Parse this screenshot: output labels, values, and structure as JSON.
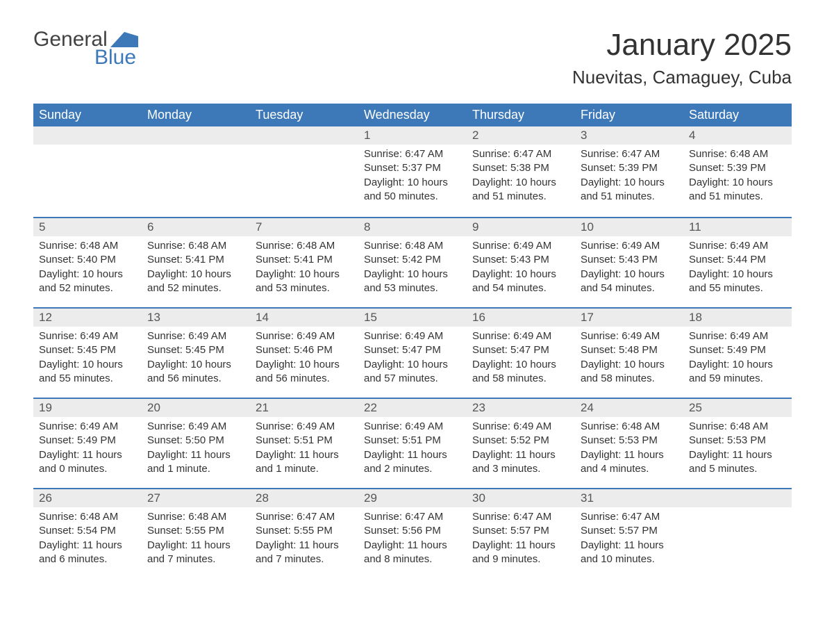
{
  "logo": {
    "text_general": "General",
    "text_blue": "Blue",
    "flag_color": "#3d79b8",
    "general_color": "#424242"
  },
  "header": {
    "month_title": "January 2025",
    "location": "Nuevitas, Camaguey, Cuba"
  },
  "styling": {
    "header_bg": "#3d79b8",
    "header_fg": "#ffffff",
    "daynum_bg": "#ececec",
    "row_divider": "#3d79b8",
    "body_text": "#333333",
    "title_fontsize": 44,
    "location_fontsize": 26,
    "th_fontsize": 18,
    "daynum_fontsize": 17,
    "cell_fontsize": 15,
    "columns": 7,
    "page_bg": "#ffffff"
  },
  "weekdays": [
    "Sunday",
    "Monday",
    "Tuesday",
    "Wednesday",
    "Thursday",
    "Friday",
    "Saturday"
  ],
  "weeks": [
    [
      {
        "day": "",
        "sunrise": "",
        "sunset": "",
        "daylight": ""
      },
      {
        "day": "",
        "sunrise": "",
        "sunset": "",
        "daylight": ""
      },
      {
        "day": "",
        "sunrise": "",
        "sunset": "",
        "daylight": ""
      },
      {
        "day": "1",
        "sunrise": "Sunrise: 6:47 AM",
        "sunset": "Sunset: 5:37 PM",
        "daylight": "Daylight: 10 hours and 50 minutes."
      },
      {
        "day": "2",
        "sunrise": "Sunrise: 6:47 AM",
        "sunset": "Sunset: 5:38 PM",
        "daylight": "Daylight: 10 hours and 51 minutes."
      },
      {
        "day": "3",
        "sunrise": "Sunrise: 6:47 AM",
        "sunset": "Sunset: 5:39 PM",
        "daylight": "Daylight: 10 hours and 51 minutes."
      },
      {
        "day": "4",
        "sunrise": "Sunrise: 6:48 AM",
        "sunset": "Sunset: 5:39 PM",
        "daylight": "Daylight: 10 hours and 51 minutes."
      }
    ],
    [
      {
        "day": "5",
        "sunrise": "Sunrise: 6:48 AM",
        "sunset": "Sunset: 5:40 PM",
        "daylight": "Daylight: 10 hours and 52 minutes."
      },
      {
        "day": "6",
        "sunrise": "Sunrise: 6:48 AM",
        "sunset": "Sunset: 5:41 PM",
        "daylight": "Daylight: 10 hours and 52 minutes."
      },
      {
        "day": "7",
        "sunrise": "Sunrise: 6:48 AM",
        "sunset": "Sunset: 5:41 PM",
        "daylight": "Daylight: 10 hours and 53 minutes."
      },
      {
        "day": "8",
        "sunrise": "Sunrise: 6:48 AM",
        "sunset": "Sunset: 5:42 PM",
        "daylight": "Daylight: 10 hours and 53 minutes."
      },
      {
        "day": "9",
        "sunrise": "Sunrise: 6:49 AM",
        "sunset": "Sunset: 5:43 PM",
        "daylight": "Daylight: 10 hours and 54 minutes."
      },
      {
        "day": "10",
        "sunrise": "Sunrise: 6:49 AM",
        "sunset": "Sunset: 5:43 PM",
        "daylight": "Daylight: 10 hours and 54 minutes."
      },
      {
        "day": "11",
        "sunrise": "Sunrise: 6:49 AM",
        "sunset": "Sunset: 5:44 PM",
        "daylight": "Daylight: 10 hours and 55 minutes."
      }
    ],
    [
      {
        "day": "12",
        "sunrise": "Sunrise: 6:49 AM",
        "sunset": "Sunset: 5:45 PM",
        "daylight": "Daylight: 10 hours and 55 minutes."
      },
      {
        "day": "13",
        "sunrise": "Sunrise: 6:49 AM",
        "sunset": "Sunset: 5:45 PM",
        "daylight": "Daylight: 10 hours and 56 minutes."
      },
      {
        "day": "14",
        "sunrise": "Sunrise: 6:49 AM",
        "sunset": "Sunset: 5:46 PM",
        "daylight": "Daylight: 10 hours and 56 minutes."
      },
      {
        "day": "15",
        "sunrise": "Sunrise: 6:49 AM",
        "sunset": "Sunset: 5:47 PM",
        "daylight": "Daylight: 10 hours and 57 minutes."
      },
      {
        "day": "16",
        "sunrise": "Sunrise: 6:49 AM",
        "sunset": "Sunset: 5:47 PM",
        "daylight": "Daylight: 10 hours and 58 minutes."
      },
      {
        "day": "17",
        "sunrise": "Sunrise: 6:49 AM",
        "sunset": "Sunset: 5:48 PM",
        "daylight": "Daylight: 10 hours and 58 minutes."
      },
      {
        "day": "18",
        "sunrise": "Sunrise: 6:49 AM",
        "sunset": "Sunset: 5:49 PM",
        "daylight": "Daylight: 10 hours and 59 minutes."
      }
    ],
    [
      {
        "day": "19",
        "sunrise": "Sunrise: 6:49 AM",
        "sunset": "Sunset: 5:49 PM",
        "daylight": "Daylight: 11 hours and 0 minutes."
      },
      {
        "day": "20",
        "sunrise": "Sunrise: 6:49 AM",
        "sunset": "Sunset: 5:50 PM",
        "daylight": "Daylight: 11 hours and 1 minute."
      },
      {
        "day": "21",
        "sunrise": "Sunrise: 6:49 AM",
        "sunset": "Sunset: 5:51 PM",
        "daylight": "Daylight: 11 hours and 1 minute."
      },
      {
        "day": "22",
        "sunrise": "Sunrise: 6:49 AM",
        "sunset": "Sunset: 5:51 PM",
        "daylight": "Daylight: 11 hours and 2 minutes."
      },
      {
        "day": "23",
        "sunrise": "Sunrise: 6:49 AM",
        "sunset": "Sunset: 5:52 PM",
        "daylight": "Daylight: 11 hours and 3 minutes."
      },
      {
        "day": "24",
        "sunrise": "Sunrise: 6:48 AM",
        "sunset": "Sunset: 5:53 PM",
        "daylight": "Daylight: 11 hours and 4 minutes."
      },
      {
        "day": "25",
        "sunrise": "Sunrise: 6:48 AM",
        "sunset": "Sunset: 5:53 PM",
        "daylight": "Daylight: 11 hours and 5 minutes."
      }
    ],
    [
      {
        "day": "26",
        "sunrise": "Sunrise: 6:48 AM",
        "sunset": "Sunset: 5:54 PM",
        "daylight": "Daylight: 11 hours and 6 minutes."
      },
      {
        "day": "27",
        "sunrise": "Sunrise: 6:48 AM",
        "sunset": "Sunset: 5:55 PM",
        "daylight": "Daylight: 11 hours and 7 minutes."
      },
      {
        "day": "28",
        "sunrise": "Sunrise: 6:47 AM",
        "sunset": "Sunset: 5:55 PM",
        "daylight": "Daylight: 11 hours and 7 minutes."
      },
      {
        "day": "29",
        "sunrise": "Sunrise: 6:47 AM",
        "sunset": "Sunset: 5:56 PM",
        "daylight": "Daylight: 11 hours and 8 minutes."
      },
      {
        "day": "30",
        "sunrise": "Sunrise: 6:47 AM",
        "sunset": "Sunset: 5:57 PM",
        "daylight": "Daylight: 11 hours and 9 minutes."
      },
      {
        "day": "31",
        "sunrise": "Sunrise: 6:47 AM",
        "sunset": "Sunset: 5:57 PM",
        "daylight": "Daylight: 11 hours and 10 minutes."
      },
      {
        "day": "",
        "sunrise": "",
        "sunset": "",
        "daylight": ""
      }
    ]
  ]
}
